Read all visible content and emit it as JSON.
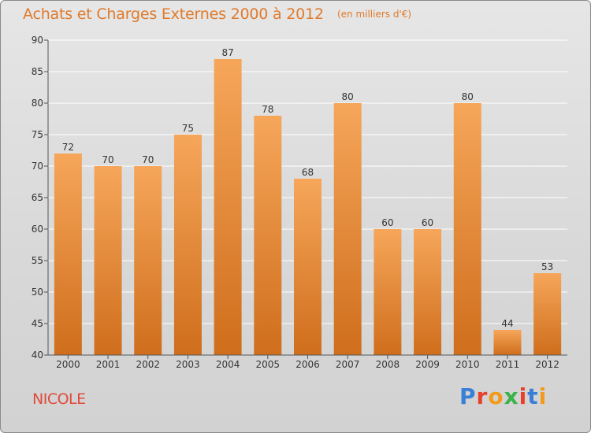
{
  "header": {
    "title": "Achats et Charges Externes 2000 à 2012",
    "unit": "(en milliers d'€)"
  },
  "commune": "NICOLE",
  "logo": {
    "text": "Proxiti",
    "letter_colors": [
      "#3a7fd6",
      "#e8402a",
      "#f39a1b",
      "#3bb34a",
      "#e8402a",
      "#3a7fd6",
      "#f39a1b"
    ]
  },
  "colors": {
    "bar_top": "#f6a65a",
    "bar_bottom": "#cf6e1c",
    "grid": "#ffffff",
    "axis": "#555555",
    "title": "#e07a2c",
    "commune": "#e04a3c"
  },
  "chart_data": {
    "type": "bar",
    "title": "Achats et Charges Externes 2000 à 2012",
    "subtitle": "(en milliers d'€)",
    "categories": [
      "2000",
      "2001",
      "2002",
      "2003",
      "2004",
      "2005",
      "2006",
      "2007",
      "2008",
      "2009",
      "2010",
      "2011",
      "2012"
    ],
    "values": [
      72,
      70,
      70,
      75,
      87,
      78,
      68,
      80,
      60,
      60,
      80,
      44,
      53
    ],
    "ylim": [
      40,
      90
    ],
    "yticks": [
      40,
      45,
      50,
      55,
      60,
      65,
      70,
      75,
      80,
      85,
      90
    ],
    "xlabel": "",
    "ylabel": "",
    "grid": true,
    "legend": "none"
  }
}
